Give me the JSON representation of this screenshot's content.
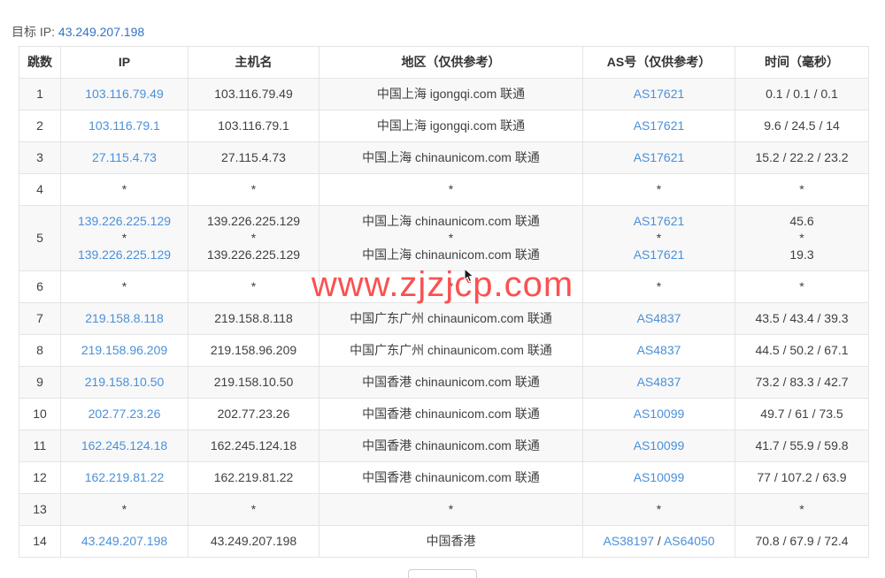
{
  "colors": {
    "link": "#4a90d9",
    "watermark": "#fb5151",
    "target-ip": "#3273c5",
    "border": "#e4e4e4",
    "stripe": "#f8f8f8"
  },
  "header": {
    "target_ip_label": "目标 IP:",
    "target_ip": "43.249.207.198"
  },
  "watermark": "www.zjzjcp.com",
  "table": {
    "columns": [
      {
        "label": "跳数",
        "name": "col-header-hop"
      },
      {
        "label": "IP",
        "name": "col-header-ip"
      },
      {
        "label": "主机名",
        "name": "col-header-hostname"
      },
      {
        "label": "地区（仅供参考）",
        "name": "col-header-region"
      },
      {
        "label": "AS号（仅供参考）",
        "name": "col-header-asn"
      },
      {
        "label": "时间（毫秒）",
        "name": "col-header-time"
      }
    ],
    "rows": [
      {
        "hop": "1",
        "ip": [
          [
            {
              "t": "103.116.79.49",
              "link": true
            }
          ]
        ],
        "host": [
          [
            {
              "t": "103.116.79.49"
            }
          ]
        ],
        "region": [
          [
            {
              "t": "中国上海 igongqi.com 联通"
            }
          ]
        ],
        "as": [
          [
            {
              "t": "AS17621",
              "link": true
            }
          ]
        ],
        "time": [
          [
            {
              "t": "0.1 / 0.1 / 0.1"
            }
          ]
        ]
      },
      {
        "hop": "2",
        "ip": [
          [
            {
              "t": "103.116.79.1",
              "link": true
            }
          ]
        ],
        "host": [
          [
            {
              "t": "103.116.79.1"
            }
          ]
        ],
        "region": [
          [
            {
              "t": "中国上海 igongqi.com 联通"
            }
          ]
        ],
        "as": [
          [
            {
              "t": "AS17621",
              "link": true
            }
          ]
        ],
        "time": [
          [
            {
              "t": "9.6 / 24.5 / 14"
            }
          ]
        ]
      },
      {
        "hop": "3",
        "ip": [
          [
            {
              "t": "27.115.4.73",
              "link": true
            }
          ]
        ],
        "host": [
          [
            {
              "t": "27.115.4.73"
            }
          ]
        ],
        "region": [
          [
            {
              "t": "中国上海 chinaunicom.com 联通"
            }
          ]
        ],
        "as": [
          [
            {
              "t": "AS17621",
              "link": true
            }
          ]
        ],
        "time": [
          [
            {
              "t": "15.2 / 22.2 / 23.2"
            }
          ]
        ]
      },
      {
        "hop": "4",
        "ip": [
          [
            {
              "t": "*"
            }
          ]
        ],
        "host": [
          [
            {
              "t": "*"
            }
          ]
        ],
        "region": [
          [
            {
              "t": "*"
            }
          ]
        ],
        "as": [
          [
            {
              "t": "*"
            }
          ]
        ],
        "time": [
          [
            {
              "t": "*"
            }
          ]
        ]
      },
      {
        "hop": "5",
        "ip": [
          [
            {
              "t": "139.226.225.129",
              "link": true
            }
          ],
          [
            {
              "t": "*"
            }
          ],
          [
            {
              "t": "139.226.225.129",
              "link": true
            }
          ]
        ],
        "host": [
          [
            {
              "t": "139.226.225.129"
            }
          ],
          [
            {
              "t": "*"
            }
          ],
          [
            {
              "t": "139.226.225.129"
            }
          ]
        ],
        "region": [
          [
            {
              "t": "中国上海 chinaunicom.com 联通"
            }
          ],
          [
            {
              "t": "*"
            }
          ],
          [
            {
              "t": "中国上海 chinaunicom.com 联通"
            }
          ]
        ],
        "as": [
          [
            {
              "t": "AS17621",
              "link": true
            }
          ],
          [
            {
              "t": "*"
            }
          ],
          [
            {
              "t": "AS17621",
              "link": true
            }
          ]
        ],
        "time": [
          [
            {
              "t": "45.6"
            }
          ],
          [
            {
              "t": "*"
            }
          ],
          [
            {
              "t": "19.3"
            }
          ]
        ]
      },
      {
        "hop": "6",
        "ip": [
          [
            {
              "t": "*"
            }
          ]
        ],
        "host": [
          [
            {
              "t": "*"
            }
          ]
        ],
        "region": [
          [
            {
              "t": "*"
            }
          ]
        ],
        "as": [
          [
            {
              "t": "*"
            }
          ]
        ],
        "time": [
          [
            {
              "t": "*"
            }
          ]
        ]
      },
      {
        "hop": "7",
        "ip": [
          [
            {
              "t": "219.158.8.118",
              "link": true
            }
          ]
        ],
        "host": [
          [
            {
              "t": "219.158.8.118"
            }
          ]
        ],
        "region": [
          [
            {
              "t": "中国广东广州 chinaunicom.com 联通"
            }
          ]
        ],
        "as": [
          [
            {
              "t": "AS4837",
              "link": true
            }
          ]
        ],
        "time": [
          [
            {
              "t": "43.5 / 43.4 / 39.3"
            }
          ]
        ]
      },
      {
        "hop": "8",
        "ip": [
          [
            {
              "t": "219.158.96.209",
              "link": true
            }
          ]
        ],
        "host": [
          [
            {
              "t": "219.158.96.209"
            }
          ]
        ],
        "region": [
          [
            {
              "t": "中国广东广州 chinaunicom.com 联通"
            }
          ]
        ],
        "as": [
          [
            {
              "t": "AS4837",
              "link": true
            }
          ]
        ],
        "time": [
          [
            {
              "t": "44.5 / 50.2 / 67.1"
            }
          ]
        ]
      },
      {
        "hop": "9",
        "ip": [
          [
            {
              "t": "219.158.10.50",
              "link": true
            }
          ]
        ],
        "host": [
          [
            {
              "t": "219.158.10.50"
            }
          ]
        ],
        "region": [
          [
            {
              "t": "中国香港 chinaunicom.com 联通"
            }
          ]
        ],
        "as": [
          [
            {
              "t": "AS4837",
              "link": true
            }
          ]
        ],
        "time": [
          [
            {
              "t": "73.2 / 83.3 / 42.7"
            }
          ]
        ]
      },
      {
        "hop": "10",
        "ip": [
          [
            {
              "t": "202.77.23.26",
              "link": true
            }
          ]
        ],
        "host": [
          [
            {
              "t": "202.77.23.26"
            }
          ]
        ],
        "region": [
          [
            {
              "t": "中国香港 chinaunicom.com 联通"
            }
          ]
        ],
        "as": [
          [
            {
              "t": "AS10099",
              "link": true
            }
          ]
        ],
        "time": [
          [
            {
              "t": "49.7 / 61 / 73.5"
            }
          ]
        ]
      },
      {
        "hop": "11",
        "ip": [
          [
            {
              "t": "162.245.124.18",
              "link": true
            }
          ]
        ],
        "host": [
          [
            {
              "t": "162.245.124.18"
            }
          ]
        ],
        "region": [
          [
            {
              "t": "中国香港 chinaunicom.com 联通"
            }
          ]
        ],
        "as": [
          [
            {
              "t": "AS10099",
              "link": true
            }
          ]
        ],
        "time": [
          [
            {
              "t": "41.7 / 55.9 / 59.8"
            }
          ]
        ]
      },
      {
        "hop": "12",
        "ip": [
          [
            {
              "t": "162.219.81.22",
              "link": true
            }
          ]
        ],
        "host": [
          [
            {
              "t": "162.219.81.22"
            }
          ]
        ],
        "region": [
          [
            {
              "t": "中国香港 chinaunicom.com 联通"
            }
          ]
        ],
        "as": [
          [
            {
              "t": "AS10099",
              "link": true
            }
          ]
        ],
        "time": [
          [
            {
              "t": "77 / 107.2 / 63.9"
            }
          ]
        ]
      },
      {
        "hop": "13",
        "ip": [
          [
            {
              "t": "*"
            }
          ]
        ],
        "host": [
          [
            {
              "t": "*"
            }
          ]
        ],
        "region": [
          [
            {
              "t": "*"
            }
          ]
        ],
        "as": [
          [
            {
              "t": "*"
            }
          ]
        ],
        "time": [
          [
            {
              "t": "*"
            }
          ]
        ]
      },
      {
        "hop": "14",
        "ip": [
          [
            {
              "t": "43.249.207.198",
              "link": true
            }
          ]
        ],
        "host": [
          [
            {
              "t": "43.249.207.198"
            }
          ]
        ],
        "region": [
          [
            {
              "t": "中国香港"
            }
          ]
        ],
        "as": [
          [
            {
              "t": "AS38197",
              "link": true
            },
            {
              "t": " / "
            },
            {
              "t": "AS64050",
              "link": true
            }
          ]
        ],
        "time": [
          [
            {
              "t": "70.8 / 67.9 / 72.4"
            }
          ]
        ]
      }
    ]
  }
}
